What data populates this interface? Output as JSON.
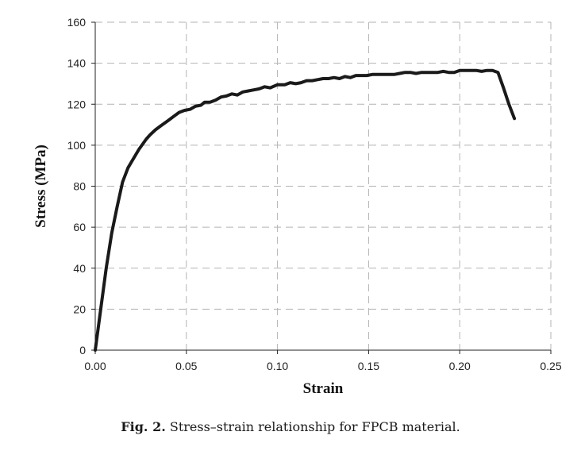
{
  "chart_data": {
    "type": "line",
    "xlabel": "Strain",
    "ylabel": "Stress (MPa)",
    "xlim": [
      0,
      0.25
    ],
    "ylim": [
      0,
      160
    ],
    "xticks": [
      0.0,
      0.05,
      0.1,
      0.15,
      0.2,
      0.25
    ],
    "xtick_labels": [
      "0.00",
      "0.05",
      "0.10",
      "0.15",
      "0.20",
      "0.25"
    ],
    "yticks": [
      0,
      20,
      40,
      60,
      80,
      100,
      120,
      140,
      160
    ],
    "ytick_labels": [
      "0",
      "20",
      "40",
      "60",
      "80",
      "100",
      "120",
      "140",
      "160"
    ],
    "grid": true,
    "legend": false,
    "line_color": "#1a1a1a",
    "series": [
      {
        "x": [
          0.0,
          0.003,
          0.006,
          0.009,
          0.012,
          0.015,
          0.018,
          0.02,
          0.024,
          0.028,
          0.03,
          0.033,
          0.036,
          0.04,
          0.043,
          0.046,
          0.049,
          0.052,
          0.055,
          0.058,
          0.06,
          0.063,
          0.066,
          0.069,
          0.072,
          0.075,
          0.078,
          0.081,
          0.084,
          0.087,
          0.09,
          0.093,
          0.096,
          0.1,
          0.104,
          0.107,
          0.11,
          0.113,
          0.116,
          0.119,
          0.122,
          0.125,
          0.128,
          0.131,
          0.134,
          0.137,
          0.14,
          0.143,
          0.146,
          0.149,
          0.152,
          0.155,
          0.158,
          0.161,
          0.164,
          0.167,
          0.17,
          0.173,
          0.176,
          0.179,
          0.182,
          0.185,
          0.188,
          0.191,
          0.194,
          0.197,
          0.2,
          0.203,
          0.206,
          0.209,
          0.212,
          0.215,
          0.218,
          0.221,
          0.224,
          0.227,
          0.23
        ],
        "y": [
          0,
          20,
          40,
          57,
          70,
          82,
          89,
          92,
          98,
          103,
          105,
          107.5,
          109.5,
          112,
          114,
          116,
          117,
          117.5,
          119,
          119.5,
          121,
          121,
          122,
          123.5,
          124,
          125,
          124.5,
          126,
          126.5,
          127,
          127.5,
          128.5,
          128,
          129.5,
          129.5,
          130.5,
          130,
          130.5,
          131.5,
          131.5,
          132,
          132.5,
          132.5,
          133,
          132.5,
          133.5,
          133,
          134,
          134,
          134,
          134.5,
          134.5,
          134.5,
          134.5,
          134.5,
          135,
          135.5,
          135.5,
          135,
          135.5,
          135.5,
          135.5,
          135.5,
          136,
          135.5,
          135.5,
          136.5,
          136.5,
          136.5,
          136.5,
          136,
          136.5,
          136.5,
          135.5,
          128,
          120,
          113
        ]
      }
    ]
  },
  "caption": {
    "label": "Fig. 2.",
    "text": "Stress–strain relationship for FPCB material."
  }
}
